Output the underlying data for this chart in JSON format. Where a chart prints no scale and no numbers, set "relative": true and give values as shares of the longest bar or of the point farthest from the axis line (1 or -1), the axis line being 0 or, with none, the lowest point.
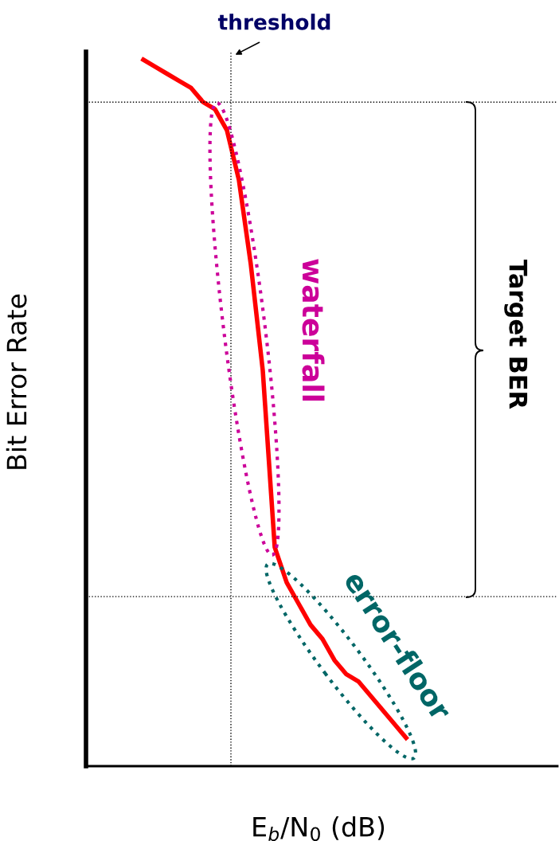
{
  "chart_data": {
    "type": "line",
    "relative": true,
    "xlabel": "E$_{b}$/N$_{0}$ (dB)",
    "ylabel": "Bit Error Rate",
    "categories": [
      null,
      null,
      null,
      null,
      null,
      null,
      null,
      null,
      null,
      null,
      null,
      null,
      null,
      null,
      null,
      null,
      null,
      null,
      null,
      null,
      null,
      null,
      null
    ],
    "series": [
      {
        "color": "#ff0000",
        "values": [
          1.0,
          0.99,
          0.98,
          0.97,
          0.96,
          0.94,
          0.93,
          0.9,
          0.83,
          0.71,
          0.56,
          0.31,
          0.26,
          0.23,
          0.2,
          0.18,
          0.15,
          0.13,
          0.12,
          0.1,
          0.08,
          0.06,
          0.04
        ]
      }
    ],
    "ref_lines": [
      {
        "axis": "y",
        "value": 0.94,
        "color": "#000000",
        "line_style": "dotted"
      },
      {
        "axis": "y",
        "value": 0.24,
        "color": "#000000",
        "line_style": "dotted"
      }
    ],
    "annotations": [
      "waterfall",
      "error-floor",
      "Target BER",
      "threshold"
    ],
    "legend": false,
    "marker": "none",
    "line_style": "solid"
  }
}
